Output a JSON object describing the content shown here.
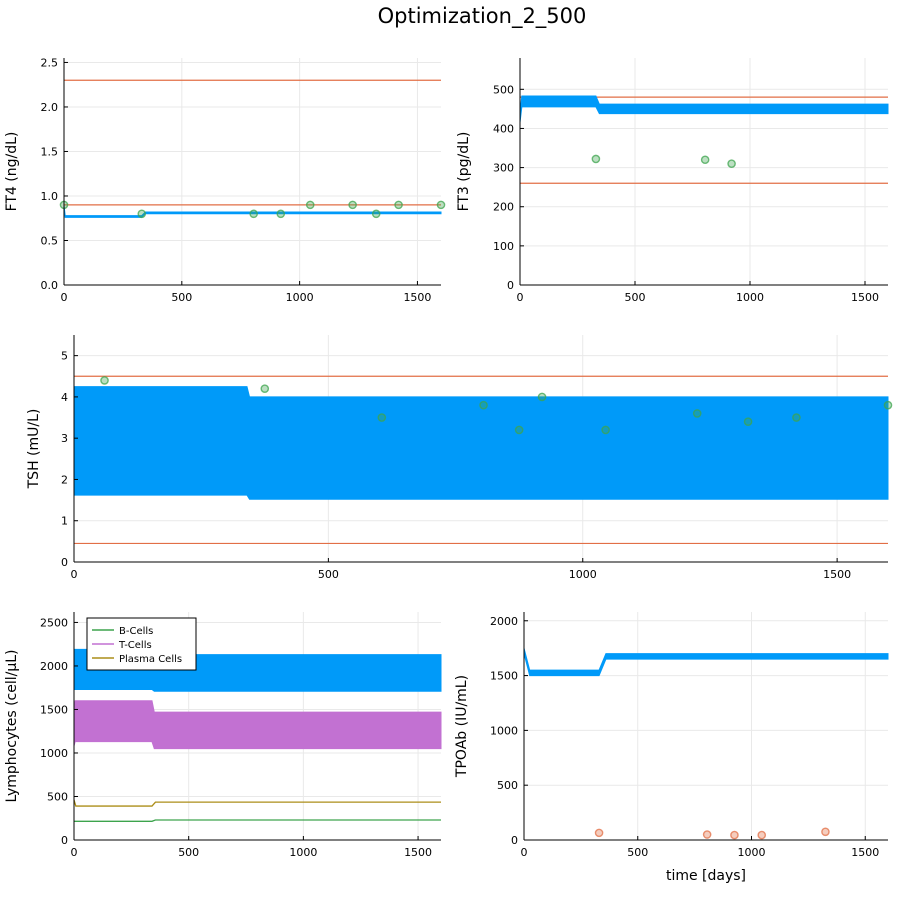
{
  "title": "Optimization_2_500",
  "colors": {
    "model": "#009AF9",
    "bound": "#E26F46",
    "obs_green": "#3DA44D",
    "obs_red": "#E26F46",
    "bcells": "#3DA44D",
    "tcells": "#C271D2",
    "plasma": "#AC8D18",
    "grid": "#e9e9e9"
  },
  "chart_data": [
    {
      "id": "ft4",
      "type": "line",
      "ylabel": "FT4 (ng/dL)",
      "xlabel": "",
      "xlim": [
        0,
        1600
      ],
      "ylim": [
        0,
        2.55
      ],
      "xticks": [
        0,
        500,
        1000,
        1500
      ],
      "yticks": [
        0.0,
        0.5,
        1.0,
        1.5,
        2.0,
        2.5
      ],
      "ytick_labels": [
        "0.0",
        "0.5",
        "1.0",
        "1.5",
        "2.0",
        "2.5"
      ],
      "grid": true,
      "bounds": [
        0.9,
        2.3
      ],
      "model": {
        "low": [
          [
            0,
            0.9
          ],
          [
            5,
            0.76
          ],
          [
            330,
            0.76
          ],
          [
            345,
            0.8
          ],
          [
            1600,
            0.8
          ]
        ],
        "high": [
          [
            0,
            0.9
          ],
          [
            5,
            0.78
          ],
          [
            330,
            0.78
          ],
          [
            345,
            0.82
          ],
          [
            1600,
            0.82
          ]
        ]
      },
      "observations": {
        "color": "green",
        "points": [
          [
            0,
            0.9
          ],
          [
            330,
            0.8
          ],
          [
            805,
            0.8
          ],
          [
            920,
            0.8
          ],
          [
            1045,
            0.9
          ],
          [
            1225,
            0.9
          ],
          [
            1325,
            0.8
          ],
          [
            1420,
            0.9
          ],
          [
            1600,
            0.9
          ]
        ]
      }
    },
    {
      "id": "ft3",
      "type": "line",
      "ylabel": "FT3 (pg/dL)",
      "xlabel": "",
      "xlim": [
        0,
        1600
      ],
      "ylim": [
        0,
        580
      ],
      "xticks": [
        0,
        500,
        1000,
        1500
      ],
      "yticks": [
        0,
        100,
        200,
        300,
        400,
        500
      ],
      "ytick_labels": [
        "0",
        "100",
        "200",
        "300",
        "400",
        "500"
      ],
      "grid": true,
      "bounds": [
        260,
        480
      ],
      "model": {
        "low": [
          [
            0,
            415
          ],
          [
            8,
            455
          ],
          [
            330,
            455
          ],
          [
            345,
            438
          ],
          [
            1600,
            438
          ]
        ],
        "high": [
          [
            0,
            440
          ],
          [
            8,
            483
          ],
          [
            330,
            483
          ],
          [
            345,
            462
          ],
          [
            1600,
            462
          ]
        ]
      },
      "observations": {
        "color": "green",
        "points": [
          [
            330,
            322
          ],
          [
            805,
            320
          ],
          [
            920,
            310
          ]
        ]
      }
    },
    {
      "id": "tsh",
      "type": "line",
      "ylabel": "TSH (mU/L)",
      "xlabel": "",
      "xlim": [
        0,
        1600
      ],
      "ylim": [
        0,
        5.5
      ],
      "xticks": [
        0,
        500,
        1000,
        1500
      ],
      "yticks": [
        0,
        1,
        2,
        3,
        4,
        5
      ],
      "ytick_labels": [
        "0",
        "1",
        "2",
        "3",
        "4",
        "5"
      ],
      "grid": true,
      "bounds": [
        0.45,
        4.5
      ],
      "model": {
        "low": [
          [
            0,
            1.62
          ],
          [
            340,
            1.62
          ],
          [
            345,
            1.52
          ],
          [
            1600,
            1.52
          ]
        ],
        "high": [
          [
            0,
            4.25
          ],
          [
            340,
            4.25
          ],
          [
            345,
            4.0
          ],
          [
            1600,
            4.0
          ]
        ]
      },
      "observations": {
        "color": "green",
        "points": [
          [
            60,
            4.4
          ],
          [
            375,
            4.2
          ],
          [
            605,
            3.5
          ],
          [
            805,
            3.8
          ],
          [
            875,
            3.2
          ],
          [
            920,
            4.0
          ],
          [
            1045,
            3.2
          ],
          [
            1225,
            3.6
          ],
          [
            1325,
            3.4
          ],
          [
            1420,
            3.5
          ],
          [
            1600,
            3.8
          ]
        ]
      }
    },
    {
      "id": "lymph",
      "type": "area",
      "ylabel": "Lymphocytes (cell/μL)",
      "xlabel": "",
      "xlim": [
        0,
        1600
      ],
      "ylim": [
        0,
        2620
      ],
      "xticks": [
        0,
        500,
        1000,
        1500
      ],
      "yticks": [
        0,
        500,
        1000,
        1500,
        2000,
        2500
      ],
      "ytick_labels": [
        "0",
        "500",
        "1000",
        "1500",
        "2000",
        "2500"
      ],
      "grid": true,
      "legend_position": "top-left",
      "bands": [
        {
          "color": "model",
          "low": [
            [
              0,
              1730
            ],
            [
              340,
              1730
            ],
            [
              350,
              1710
            ],
            [
              1600,
              1710
            ]
          ],
          "high": [
            [
              0,
              2190
            ],
            [
              340,
              2190
            ],
            [
              350,
              2130
            ],
            [
              1600,
              2130
            ]
          ]
        },
        {
          "color": "tcells",
          "low": [
            [
              0,
              1080
            ],
            [
              5,
              1130
            ],
            [
              340,
              1130
            ],
            [
              350,
              1050
            ],
            [
              1600,
              1050
            ]
          ],
          "high": [
            [
              0,
              1500
            ],
            [
              5,
              1600
            ],
            [
              340,
              1600
            ],
            [
              350,
              1470
            ],
            [
              1600,
              1470
            ]
          ]
        }
      ],
      "series": [
        {
          "name": "B-Cells",
          "color": "bcells",
          "points": [
            [
              0,
              215
            ],
            [
              340,
              215
            ],
            [
              355,
              230
            ],
            [
              1600,
              230
            ]
          ]
        },
        {
          "name": "T-Cells",
          "color": "tcells",
          "points": []
        },
        {
          "name": "Plasma Cells",
          "color": "plasma",
          "points": [
            [
              0,
              460
            ],
            [
              8,
              390
            ],
            [
              340,
              390
            ],
            [
              355,
              435
            ],
            [
              1600,
              435
            ]
          ]
        }
      ]
    },
    {
      "id": "tpoab",
      "type": "line",
      "ylabel": "TPOAb (IU/mL)",
      "xlabel": "time [days]",
      "xlim": [
        0,
        1600
      ],
      "ylim": [
        0,
        2080
      ],
      "xticks": [
        0,
        500,
        1000,
        1500
      ],
      "yticks": [
        0,
        500,
        1000,
        1500,
        2000
      ],
      "ytick_labels": [
        "0",
        "500",
        "1000",
        "1500",
        "2000"
      ],
      "grid": true,
      "model": {
        "low": [
          [
            0,
            1700
          ],
          [
            25,
            1500
          ],
          [
            330,
            1500
          ],
          [
            360,
            1650
          ],
          [
            1600,
            1650
          ]
        ],
        "high": [
          [
            0,
            1750
          ],
          [
            25,
            1550
          ],
          [
            330,
            1550
          ],
          [
            360,
            1700
          ],
          [
            1600,
            1700
          ]
        ]
      },
      "observations": {
        "color": "red",
        "points": [
          [
            330,
            65
          ],
          [
            805,
            50
          ],
          [
            925,
            45
          ],
          [
            1045,
            45
          ],
          [
            1325,
            75
          ]
        ]
      }
    }
  ]
}
